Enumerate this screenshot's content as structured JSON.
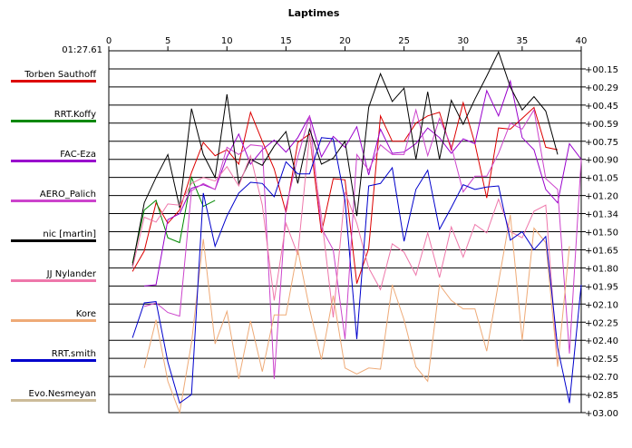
{
  "chart_data": {
    "type": "line",
    "title": "Laptimes",
    "best_time": "01:27.61",
    "x_ticks": [
      0,
      5,
      10,
      15,
      20,
      25,
      30,
      35,
      40
    ],
    "xlim": [
      0,
      40
    ],
    "y_tick_labels": [
      "+00.15",
      "+00.29",
      "+00.45",
      "+00.59",
      "+00.75",
      "+00.90",
      "+01.05",
      "+01.20",
      "+01.34",
      "+01.50",
      "+01.65",
      "+01.80",
      "+01.95",
      "+02.10",
      "+02.25",
      "+02.40",
      "+02.55",
      "+02.70",
      "+02.85",
      "+03.00"
    ],
    "ylim": [
      0,
      3.0
    ],
    "grid": "horizontal",
    "legend_position": "left",
    "series": [
      {
        "name": "Torben Sauthoff",
        "color": "#dd0000",
        "x": [
          2,
          3,
          4,
          5,
          6,
          7,
          8,
          9,
          10,
          11,
          12,
          13,
          14,
          15,
          16,
          17,
          18,
          19,
          20,
          21,
          22,
          23,
          24,
          25,
          26,
          27,
          28,
          29,
          30,
          31,
          32,
          33,
          34,
          35,
          36,
          37,
          38
        ],
        "y": [
          1.83,
          1.66,
          1.26,
          1.43,
          1.32,
          1.01,
          0.76,
          0.87,
          0.82,
          0.94,
          0.51,
          0.75,
          0.98,
          1.34,
          0.76,
          0.69,
          1.51,
          1.06,
          1.07,
          1.93,
          1.64,
          0.54,
          0.75,
          0.75,
          0.6,
          0.54,
          0.51,
          0.82,
          0.43,
          0.77,
          1.22,
          0.64,
          0.65,
          0.56,
          0.47,
          0.8,
          0.82
        ]
      },
      {
        "name": "RRT.Koffy",
        "color": "#008800",
        "x": [
          2,
          3,
          4,
          5,
          6,
          7,
          8,
          9
        ],
        "y": [
          1.76,
          1.32,
          1.24,
          1.55,
          1.59,
          1.05,
          1.29,
          1.24
        ]
      },
      {
        "name": "FAC-Eza",
        "color": "#9900cc",
        "x": [
          3,
          4,
          5,
          6,
          7,
          8,
          9,
          10,
          11,
          12,
          13,
          14,
          15,
          16,
          17,
          18,
          19,
          20,
          21,
          22,
          23,
          24,
          25,
          26,
          27,
          28,
          29,
          30,
          31,
          32,
          33,
          34,
          35,
          36,
          37,
          38,
          39,
          40
        ],
        "y": [
          1.95,
          1.94,
          1.4,
          1.35,
          1.14,
          1.11,
          1.15,
          0.88,
          0.69,
          0.94,
          0.82,
          0.74,
          0.84,
          0.72,
          0.54,
          0.88,
          0.71,
          0.8,
          0.63,
          1.03,
          0.65,
          0.85,
          0.84,
          0.77,
          0.64,
          0.72,
          0.85,
          0.73,
          0.77,
          0.33,
          0.54,
          0.25,
          0.72,
          0.82,
          1.15,
          1.26,
          0.77,
          0.9
        ]
      },
      {
        "name": "AERO_Palich",
        "color": "#cc44cc",
        "x": [
          3,
          4,
          5,
          6,
          7,
          8,
          9,
          10,
          11,
          12,
          13,
          14,
          15,
          16,
          17,
          18,
          19,
          20,
          21,
          22,
          23,
          24,
          25,
          26,
          27,
          28,
          29,
          30,
          31,
          32,
          33,
          34,
          35,
          36,
          37,
          38,
          39,
          40
        ],
        "y": [
          2.12,
          2.09,
          2.17,
          2.2,
          1.16,
          1.1,
          1.15,
          0.8,
          0.86,
          0.78,
          0.79,
          2.72,
          1.3,
          0.88,
          0.54,
          1.47,
          1.65,
          2.39,
          0.86,
          0.99,
          0.78,
          0.86,
          0.86,
          0.49,
          0.87,
          0.56,
          0.79,
          1.17,
          1.04,
          1.04,
          0.85,
          0.6,
          0.65,
          0.49,
          1.06,
          1.15,
          2.51,
          0.9
        ]
      },
      {
        "name": "nic [martin]",
        "color": "#000000",
        "x": [
          2,
          3,
          4,
          5,
          6,
          7,
          8,
          9,
          10,
          11,
          12,
          13,
          14,
          15,
          16,
          17,
          18,
          19,
          20,
          21,
          22,
          23,
          24,
          25,
          26,
          27,
          28,
          29,
          30,
          31,
          32,
          33,
          34,
          35,
          36,
          37,
          38
        ],
        "y": [
          1.78,
          1.26,
          1.05,
          0.86,
          1.3,
          0.48,
          0.86,
          1.05,
          0.36,
          1.1,
          0.9,
          0.95,
          0.79,
          0.67,
          1.1,
          0.65,
          0.94,
          0.89,
          0.75,
          1.37,
          0.47,
          0.19,
          0.42,
          0.31,
          0.9,
          0.34,
          0.9,
          0.41,
          0.61,
          0.4,
          0.21,
          0.01,
          0.3,
          0.49,
          0.38,
          0.5,
          0.86
        ]
      },
      {
        "name": "JJ Nylander",
        "color": "#ee77aa",
        "x": [
          2,
          3,
          4,
          5,
          6,
          7,
          8,
          9,
          10,
          11,
          12,
          13,
          14,
          15,
          16,
          17,
          18,
          19,
          20,
          21,
          22,
          23,
          24,
          25,
          26,
          27,
          28,
          29,
          30,
          31,
          32,
          33,
          34,
          35,
          36,
          37,
          38
        ],
        "y": [
          1.8,
          1.38,
          1.42,
          1.27,
          1.28,
          1.1,
          1.05,
          1.08,
          0.96,
          1.12,
          0.87,
          1.28,
          2.07,
          1.43,
          1.69,
          0.7,
          1.37,
          2.21,
          1.17,
          1.43,
          1.8,
          1.98,
          1.6,
          1.67,
          1.86,
          1.51,
          1.88,
          1.46,
          1.71,
          1.44,
          1.51,
          1.23,
          1.5,
          1.55,
          1.33,
          1.28,
          2.61
        ]
      },
      {
        "name": "Kore",
        "color": "#eeaa77",
        "x": [
          3,
          4,
          5,
          6,
          7,
          8,
          9,
          10,
          11,
          12,
          13,
          14,
          15,
          16,
          17,
          18,
          19,
          20,
          21,
          22,
          23,
          24,
          25,
          26,
          27,
          28,
          29,
          30,
          31,
          32,
          33,
          34,
          35,
          36,
          37,
          38,
          39
        ],
        "y": [
          2.63,
          2.23,
          2.74,
          3.0,
          2.42,
          1.56,
          2.43,
          2.16,
          2.72,
          2.24,
          2.66,
          2.19,
          2.19,
          1.65,
          2.14,
          2.56,
          2.03,
          2.63,
          2.68,
          2.63,
          2.64,
          1.94,
          2.23,
          2.62,
          2.74,
          1.94,
          2.07,
          2.14,
          2.14,
          2.49,
          1.92,
          1.36,
          2.4,
          1.47,
          1.59,
          2.62,
          1.62
        ]
      },
      {
        "name": "RRT.smith",
        "color": "#0000cc",
        "x": [
          2,
          3,
          4,
          5,
          6,
          7,
          8,
          9,
          10,
          11,
          12,
          13,
          14,
          15,
          16,
          17,
          18,
          19,
          20,
          21,
          22,
          23,
          24,
          25,
          26,
          27,
          28,
          29,
          30,
          31,
          32,
          33,
          34,
          35,
          36,
          37,
          38,
          39,
          40
        ],
        "y": [
          2.38,
          2.09,
          2.08,
          2.58,
          2.92,
          2.85,
          1.18,
          1.62,
          1.37,
          1.18,
          1.09,
          1.1,
          1.21,
          0.92,
          1.02,
          1.02,
          0.72,
          0.73,
          1.24,
          2.39,
          1.12,
          1.1,
          0.97,
          1.58,
          1.15,
          0.99,
          1.48,
          1.3,
          1.11,
          1.15,
          1.13,
          1.12,
          1.57,
          1.5,
          1.65,
          1.54,
          2.46,
          2.92,
          1.94
        ]
      },
      {
        "name": "Evo.Nesmeyan",
        "color": "#ccbb99",
        "x": [],
        "y": []
      }
    ]
  }
}
